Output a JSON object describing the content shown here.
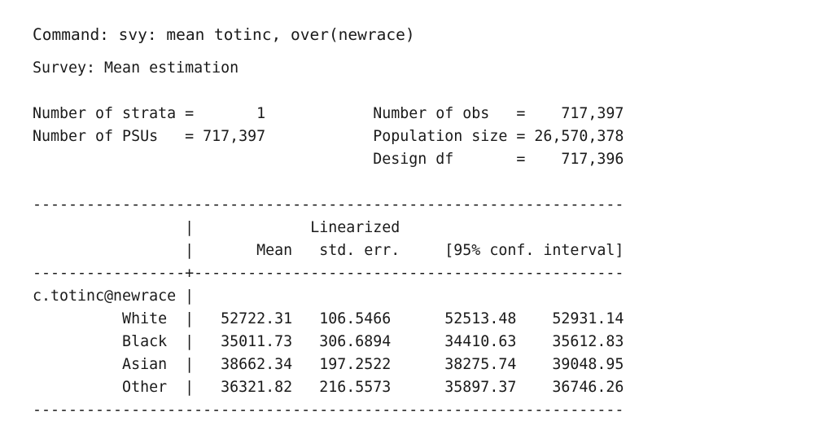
{
  "command": "Command: svy: mean totinc, over(newrace)",
  "lines": [
    "Survey: Mean estimation",
    "",
    "Number of strata =       1            Number of obs   =    717,397",
    "Number of PSUs   = 717,397            Population size = 26,570,378",
    "                                      Design df       =    717,396",
    "",
    "------------------------------------------------------------------",
    "                 |             Linearized",
    "                 |       Mean   std. err.     [95% conf. interval]",
    "-----------------+------------------------------------------------",
    "c.totinc@newrace |",
    "          White  |   52722.31   106.5466      52513.48    52931.14",
    "          Black  |   35011.73   306.6894      34410.63    35612.83",
    "          Asian  |   38662.34   197.2522      38275.74    39048.95",
    "          Other  |   36321.82   216.5573      35897.37    36746.26",
    "------------------------------------------------------------------"
  ]
}
